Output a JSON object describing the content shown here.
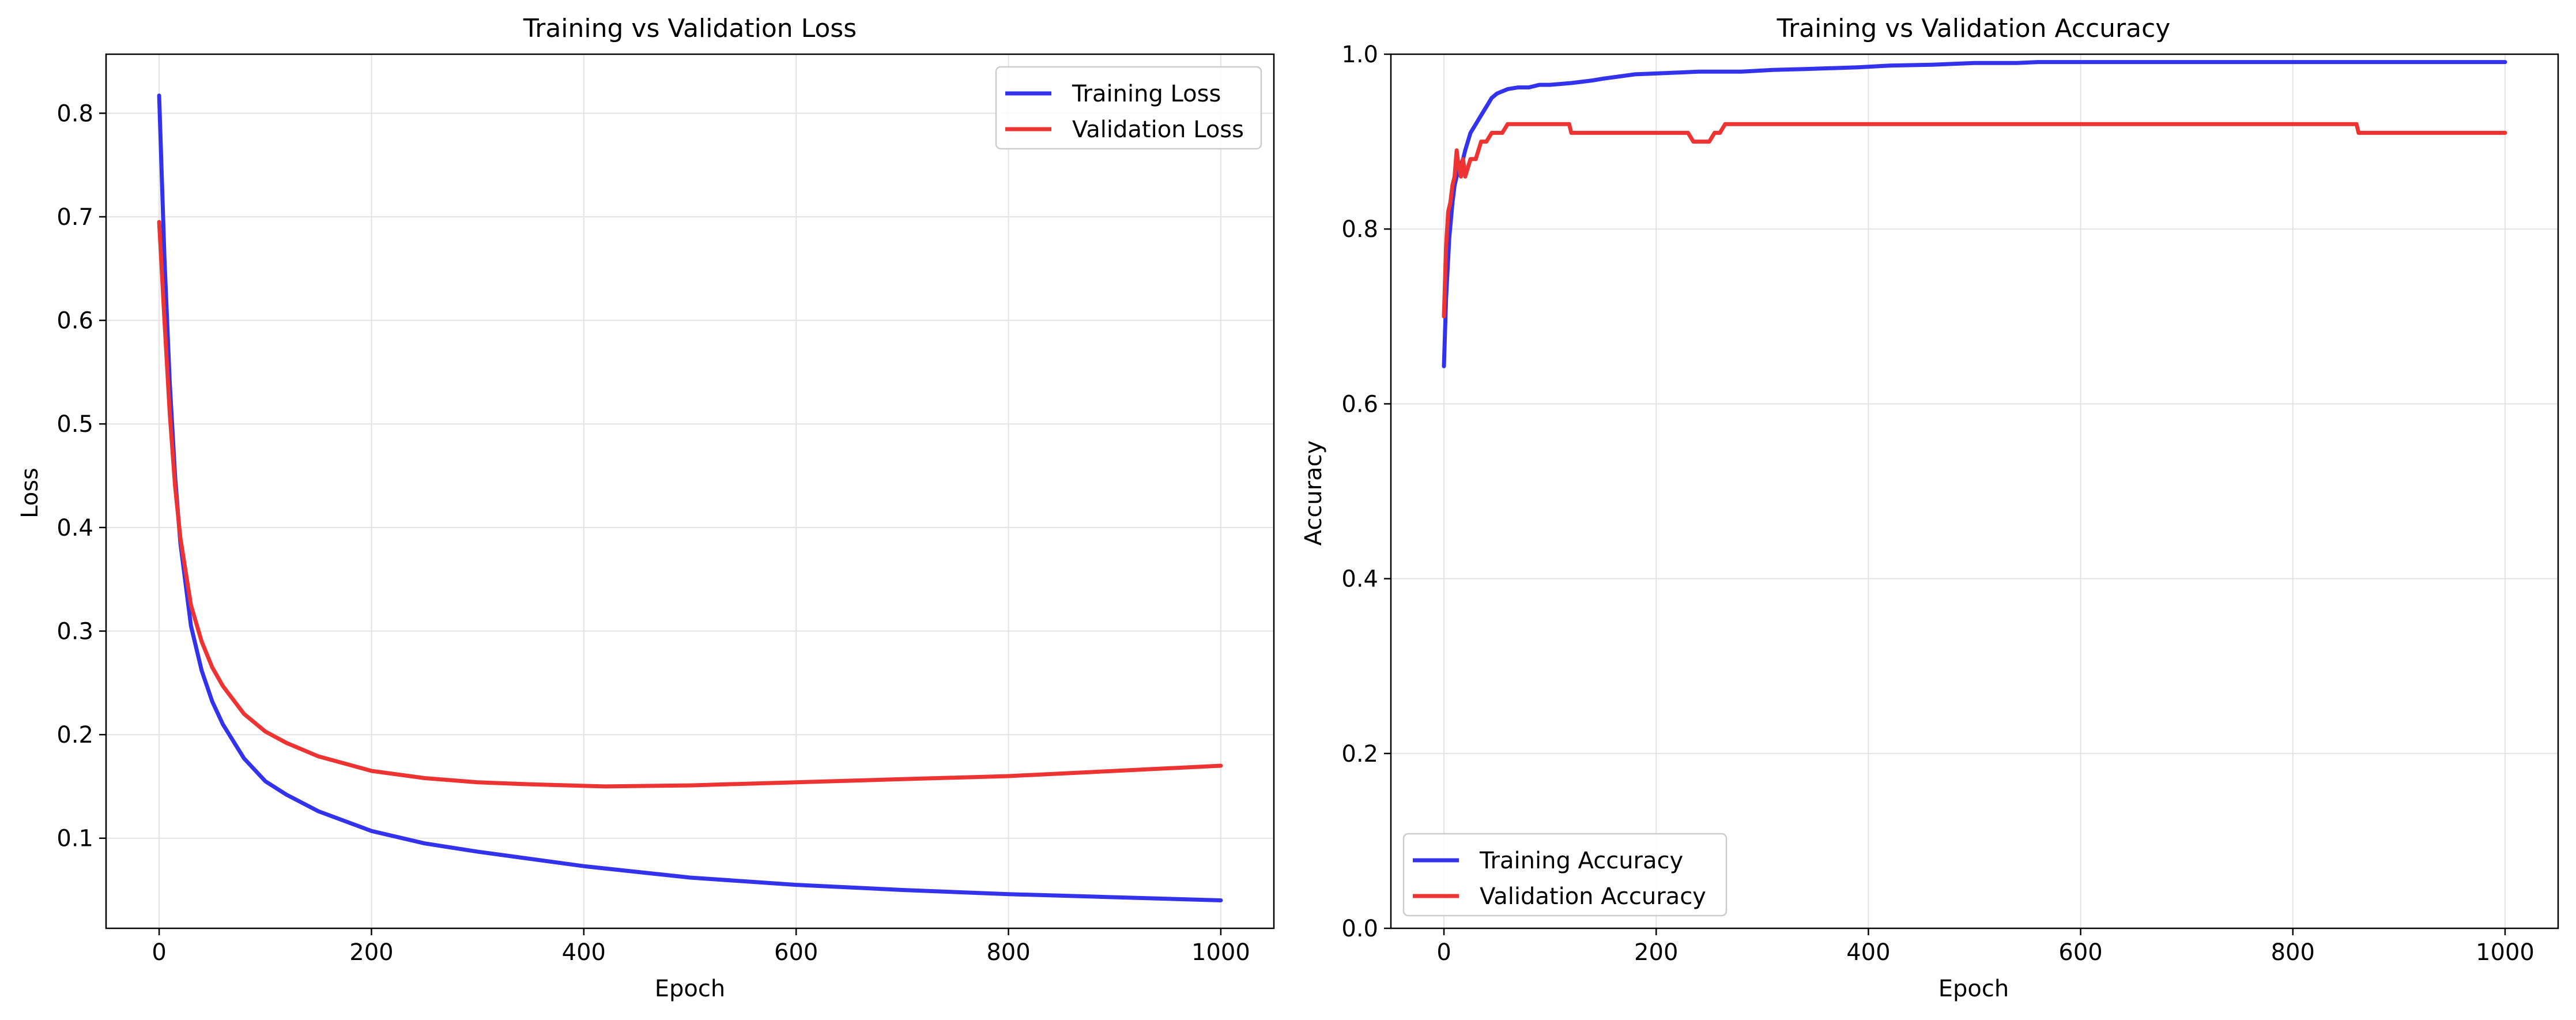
{
  "chart_data": [
    {
      "type": "line",
      "title": "Training vs Validation Loss",
      "xlabel": "Epoch",
      "ylabel": "Loss",
      "xlim": [
        -50,
        1050
      ],
      "ylim": [
        0.013,
        0.857
      ],
      "xticks": [
        0,
        200,
        400,
        600,
        800,
        1000
      ],
      "xtick_labels": [
        "0",
        "200",
        "400",
        "600",
        "800",
        "1000"
      ],
      "yticks": [
        0.1,
        0.2,
        0.3,
        0.4,
        0.5,
        0.6,
        0.7,
        0.8
      ],
      "ytick_labels": [
        "0.1",
        "0.2",
        "0.3",
        "0.4",
        "0.5",
        "0.6",
        "0.7",
        "0.8"
      ],
      "grid": true,
      "legend": "top-right",
      "series": [
        {
          "name": "Training Loss",
          "color": "#3333ee",
          "x": [
            0,
            5,
            10,
            15,
            20,
            30,
            40,
            50,
            60,
            80,
            100,
            120,
            150,
            200,
            250,
            300,
            400,
            500,
            600,
            700,
            800,
            900,
            1000
          ],
          "y": [
            0.817,
            0.66,
            0.54,
            0.45,
            0.385,
            0.305,
            0.262,
            0.232,
            0.21,
            0.177,
            0.155,
            0.142,
            0.126,
            0.107,
            0.095,
            0.087,
            0.073,
            0.062,
            0.055,
            0.05,
            0.046,
            0.043,
            0.04
          ]
        },
        {
          "name": "Validation Loss",
          "color": "#ee3333",
          "x": [
            0,
            5,
            10,
            15,
            20,
            30,
            40,
            50,
            60,
            80,
            100,
            120,
            150,
            200,
            250,
            300,
            350,
            420,
            500,
            600,
            700,
            800,
            900,
            1000
          ],
          "y": [
            0.695,
            0.6,
            0.51,
            0.44,
            0.39,
            0.325,
            0.29,
            0.265,
            0.247,
            0.22,
            0.203,
            0.192,
            0.179,
            0.165,
            0.158,
            0.154,
            0.152,
            0.15,
            0.151,
            0.154,
            0.157,
            0.16,
            0.165,
            0.17
          ]
        }
      ]
    },
    {
      "type": "line",
      "title": "Training vs Validation Accuracy",
      "xlabel": "Epoch",
      "ylabel": "Accuracy",
      "xlim": [
        -50,
        1050
      ],
      "ylim": [
        0,
        1.0
      ],
      "xticks": [
        0,
        200,
        400,
        600,
        800,
        1000
      ],
      "xtick_labels": [
        "0",
        "200",
        "400",
        "600",
        "800",
        "1000"
      ],
      "yticks": [
        0.0,
        0.2,
        0.4,
        0.6,
        0.8,
        1.0
      ],
      "ytick_labels": [
        "0.0",
        "0.2",
        "0.4",
        "0.6",
        "0.8",
        "1.0"
      ],
      "grid": true,
      "legend": "bottom-left",
      "series": [
        {
          "name": "Training Accuracy",
          "color": "#3333ee",
          "x": [
            0,
            2,
            5,
            8,
            10,
            12,
            15,
            18,
            20,
            25,
            30,
            35,
            40,
            45,
            50,
            60,
            70,
            80,
            90,
            100,
            120,
            140,
            150,
            180,
            200,
            240,
            280,
            310,
            340,
            390,
            420,
            460,
            500,
            540,
            560,
            1000
          ],
          "y": [
            0.643,
            0.72,
            0.79,
            0.83,
            0.85,
            0.86,
            0.87,
            0.88,
            0.89,
            0.91,
            0.92,
            0.93,
            0.94,
            0.95,
            0.955,
            0.96,
            0.962,
            0.962,
            0.965,
            0.965,
            0.967,
            0.97,
            0.972,
            0.977,
            0.978,
            0.98,
            0.98,
            0.982,
            0.983,
            0.985,
            0.987,
            0.988,
            0.99,
            0.99,
            0.991,
            0.991
          ]
        },
        {
          "name": "Validation Accuracy",
          "color": "#ee3333",
          "x": [
            0,
            2,
            4,
            6,
            8,
            10,
            12,
            14,
            16,
            18,
            20,
            25,
            30,
            35,
            40,
            45,
            50,
            55,
            60,
            70,
            80,
            90,
            100,
            110,
            118,
            120,
            150,
            200,
            230,
            235,
            245,
            250,
            255,
            260,
            265,
            300,
            400,
            500,
            600,
            700,
            800,
            860,
            862,
            900,
            1000
          ],
          "y": [
            0.7,
            0.78,
            0.82,
            0.83,
            0.85,
            0.86,
            0.89,
            0.87,
            0.86,
            0.88,
            0.86,
            0.88,
            0.88,
            0.9,
            0.9,
            0.91,
            0.91,
            0.91,
            0.92,
            0.92,
            0.92,
            0.92,
            0.92,
            0.92,
            0.92,
            0.91,
            0.91,
            0.91,
            0.91,
            0.9,
            0.9,
            0.9,
            0.91,
            0.91,
            0.92,
            0.92,
            0.92,
            0.92,
            0.92,
            0.92,
            0.92,
            0.92,
            0.91,
            0.91,
            0.91
          ]
        }
      ]
    }
  ]
}
